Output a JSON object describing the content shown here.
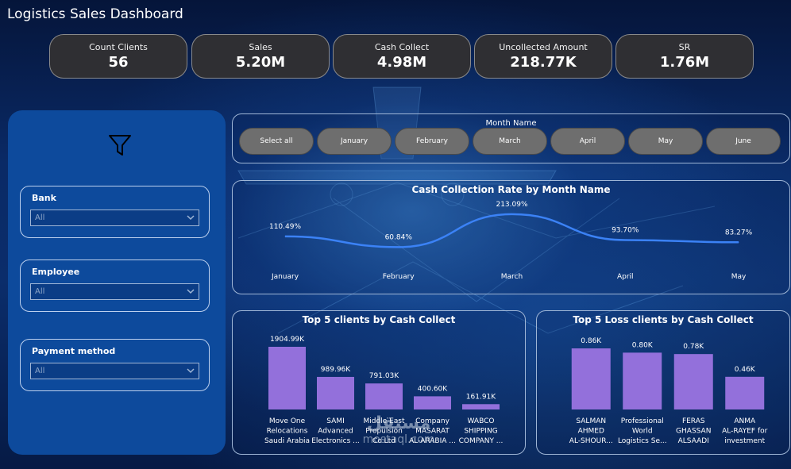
{
  "header": {
    "title": "Logistics Sales Dashboard"
  },
  "kpis": [
    {
      "label": "Count Clients",
      "value": "56"
    },
    {
      "label": "Sales",
      "value": "5.20M"
    },
    {
      "label": "Cash Collect",
      "value": "4.98M"
    },
    {
      "label": "Uncollected Amount",
      "value": "218.77K"
    },
    {
      "label": "SR",
      "value": "1.76M"
    }
  ],
  "filters": {
    "icon": "funnel-icon",
    "slicers": [
      {
        "label": "Bank",
        "value": "All"
      },
      {
        "label": "Employee",
        "value": "All"
      },
      {
        "label": "Payment method",
        "value": "All"
      }
    ]
  },
  "month_slicer": {
    "title": "Month Name",
    "options": [
      "Select all",
      "January",
      "February",
      "March",
      "April",
      "May",
      "June"
    ]
  },
  "watermark": {
    "arabic": "مستقل",
    "latin": "mostaql.com"
  },
  "colors": {
    "bar": "#9370db",
    "line": "#3b82f6",
    "kpi_bg": "#2f2f33",
    "panel": "#0d4a9c"
  },
  "chart_data": [
    {
      "type": "line",
      "title": "Cash Collection Rate by Month Name",
      "categories": [
        "January",
        "February",
        "March",
        "April",
        "May"
      ],
      "values": [
        110.49,
        60.84,
        213.09,
        93.7,
        83.27
      ],
      "labels": [
        "110.49%",
        "60.84%",
        "213.09%",
        "93.70%",
        "83.27%"
      ],
      "ylim": [
        0,
        220
      ]
    },
    {
      "type": "bar",
      "title": "Top 5 clients by Cash Collect",
      "categories": [
        [
          "Move One",
          "Relocations",
          "Saudi Arabia"
        ],
        [
          "SAMI",
          "Advanced",
          "Electronics ..."
        ],
        [
          "Middle East",
          "Propulsion",
          "Co Ltd"
        ],
        [
          "Company",
          "MASARAT",
          "AL-ARABIA ..."
        ],
        [
          "WABCO",
          "SHIPPING",
          "COMPANY ..."
        ]
      ],
      "values": [
        1904.99,
        989.96,
        791.03,
        400.6,
        161.91
      ],
      "labels": [
        "1904.99K",
        "989.96K",
        "791.03K",
        "400.60K",
        "161.91K"
      ],
      "ylim": [
        0,
        1904.99
      ]
    },
    {
      "type": "bar",
      "title": "Top 5 Loss clients by Cash Collect",
      "categories": [
        [
          "SALMAN",
          "AHMED",
          "AL-SHOUR..."
        ],
        [
          "Professional",
          "World",
          "Logistics Se..."
        ],
        [
          "FERAS",
          "GHASSAN",
          "ALSAADI"
        ],
        [
          "ANMA",
          "AL-RAYEF for",
          "investment"
        ]
      ],
      "values": [
        0.86,
        0.8,
        0.78,
        0.46
      ],
      "labels": [
        "0.86K",
        "0.80K",
        "0.78K",
        "0.46K"
      ],
      "ylim": [
        0,
        0.86
      ]
    }
  ]
}
